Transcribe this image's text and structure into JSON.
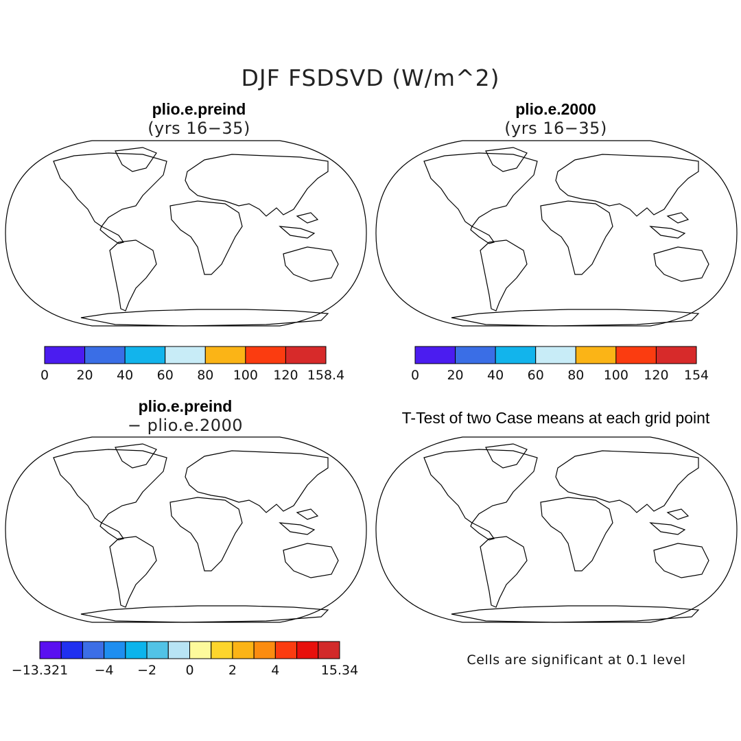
{
  "figure": {
    "title": "DJF FSDSVD (W/m^2)",
    "panels": [
      {
        "title": "plio.e.preind",
        "subtitle": "(yrs 16−35)"
      },
      {
        "title": "plio.e.2000",
        "subtitle": "(yrs 16−35)"
      },
      {
        "title": "plio.e.preind",
        "subtitle": "− plio.e.2000"
      },
      {
        "title": "T-Test of two Case means at each grid point",
        "subtitle": ""
      }
    ],
    "significance_note": "Cells are significant at 0.1 level"
  },
  "colorbars": [
    {
      "colors": [
        "#4b1cf0",
        "#3a6ee6",
        "#12b4ec",
        "#c8ecf7",
        "#fbb416",
        "#fb3c10",
        "#d72a2a"
      ],
      "tick_labels": [
        "0",
        "20",
        "40",
        "60",
        "80",
        "100",
        "120",
        "158.4"
      ]
    },
    {
      "colors": [
        "#4b1cf0",
        "#3a6ee6",
        "#12b4ec",
        "#c8ecf7",
        "#fbb416",
        "#fb3c10",
        "#d72a2a"
      ],
      "tick_labels": [
        "0",
        "20",
        "40",
        "60",
        "80",
        "100",
        "120",
        "154"
      ]
    },
    {
      "colors": [
        "#5a10f0",
        "#2030f0",
        "#3c6ee6",
        "#1e8ef0",
        "#0cb4ec",
        "#52c3e6",
        "#b8e4f4",
        "#fdfa9c",
        "#fdd52c",
        "#fbb416",
        "#fb8c10",
        "#fb3c10",
        "#e8100c",
        "#d22a2a"
      ],
      "tick_labels": [
        "−13.321",
        "−4",
        "−2",
        "0",
        "2",
        "4",
        "15.34"
      ]
    }
  ],
  "significance_color": "#ff0000",
  "land_outline_color": "#000000"
}
